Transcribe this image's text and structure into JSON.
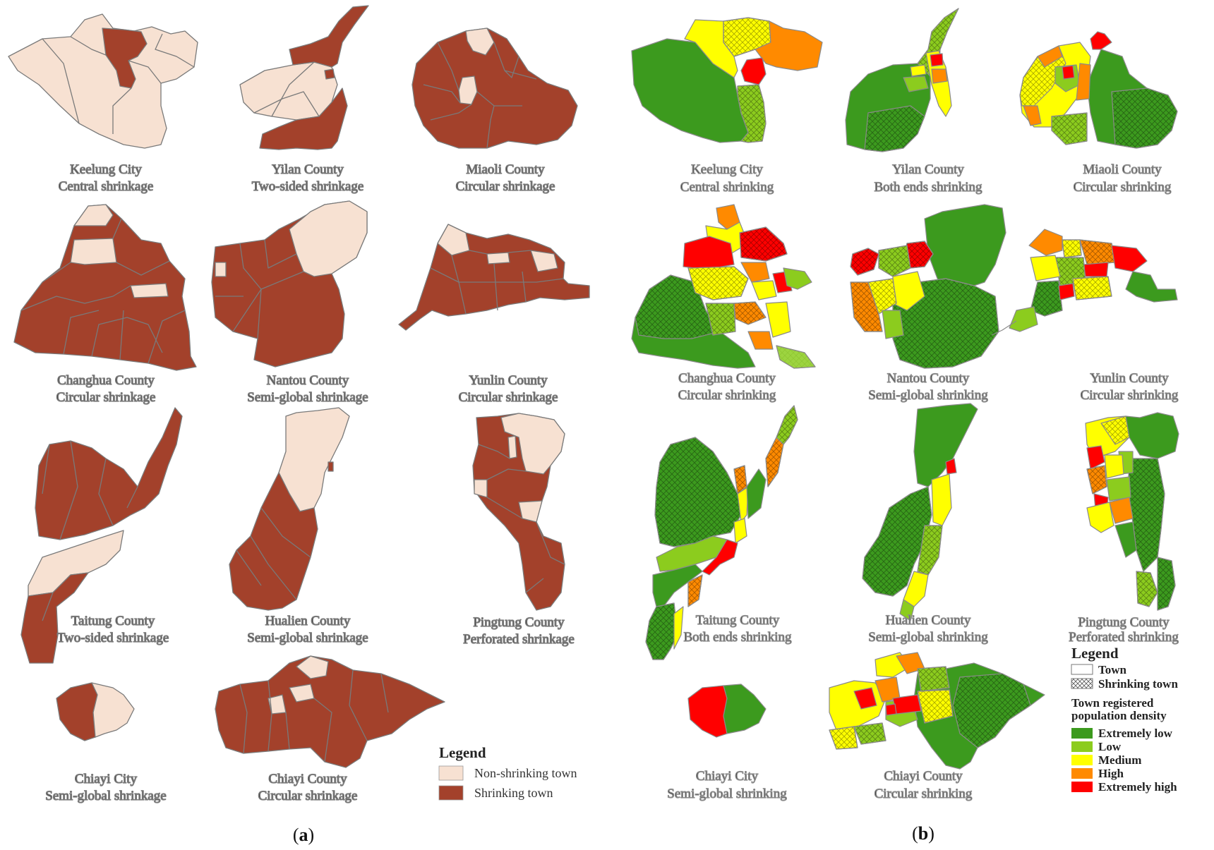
{
  "colors": {
    "non_shrinking": "#f7e1d2",
    "shrinking": "#a3412b",
    "outline": "#7a7a7a",
    "extremely_low": "#3c9a1e",
    "low": "#8ccc1e",
    "medium": "#ffff00",
    "high": "#ff8a00",
    "extremely_high": "#ff0000"
  },
  "panel_a": {
    "label_open": "(",
    "label_letter": "a",
    "label_close": ")",
    "maps": [
      {
        "name": "Keelung City",
        "pattern": "Central shrinkage"
      },
      {
        "name": "Yilan County",
        "pattern": "Two-sided shrinkage"
      },
      {
        "name": "Miaoli County",
        "pattern": "Circular shrinkage"
      },
      {
        "name": "Changhua County",
        "pattern": "Circular shrinkage"
      },
      {
        "name": "Nantou County",
        "pattern": "Semi-global shrinkage"
      },
      {
        "name": "Yunlin County",
        "pattern": "Circular shrinkage"
      },
      {
        "name": "Taitung County",
        "pattern": "Two-sided shrinkage"
      },
      {
        "name": "Hualien County",
        "pattern": "Semi-global shrinkage"
      },
      {
        "name": "Pingtung County",
        "pattern": "Perforated shrinkage"
      },
      {
        "name": "Chiayi City",
        "pattern": "Semi-global shrinkage"
      },
      {
        "name": "Chiayi County",
        "pattern": "Circular shrinkage"
      }
    ],
    "legend": {
      "title": "Legend",
      "items": [
        "Non-shrinking town",
        "Shrinking town"
      ]
    }
  },
  "panel_b": {
    "label_open": "(",
    "label_letter": "b",
    "label_close": ")",
    "maps": [
      {
        "name": "Keelung City",
        "pattern": "Central shrinking"
      },
      {
        "name": "Yilan County",
        "pattern": "Both ends shrinking"
      },
      {
        "name": "Miaoli County",
        "pattern": "Circular shrinking"
      },
      {
        "name": "Changhua County",
        "pattern": "Circular shrinking"
      },
      {
        "name": "Nantou County",
        "pattern": "Semi-global shrinking"
      },
      {
        "name": "Yunlin County",
        "pattern": "Circular shrinking"
      },
      {
        "name": "Taitung County",
        "pattern": "Both ends shrinking"
      },
      {
        "name": "Hualien County",
        "pattern": "Semi-global shrinking"
      },
      {
        "name": "Pingtung County",
        "pattern": "Perforated shrinking"
      },
      {
        "name": "Chiayi City",
        "pattern": "Semi-global shrinking"
      },
      {
        "name": "Chiayi County",
        "pattern": "Circular shrinking"
      }
    ],
    "legend": {
      "title": "Legend",
      "town": "Town",
      "shrinking_town": "Shrinking town",
      "density_title_1": "Town registered",
      "density_title_2": "population density",
      "levels": [
        "Extremely low",
        "Low",
        "Medium",
        "High",
        "Extremely high"
      ]
    }
  }
}
